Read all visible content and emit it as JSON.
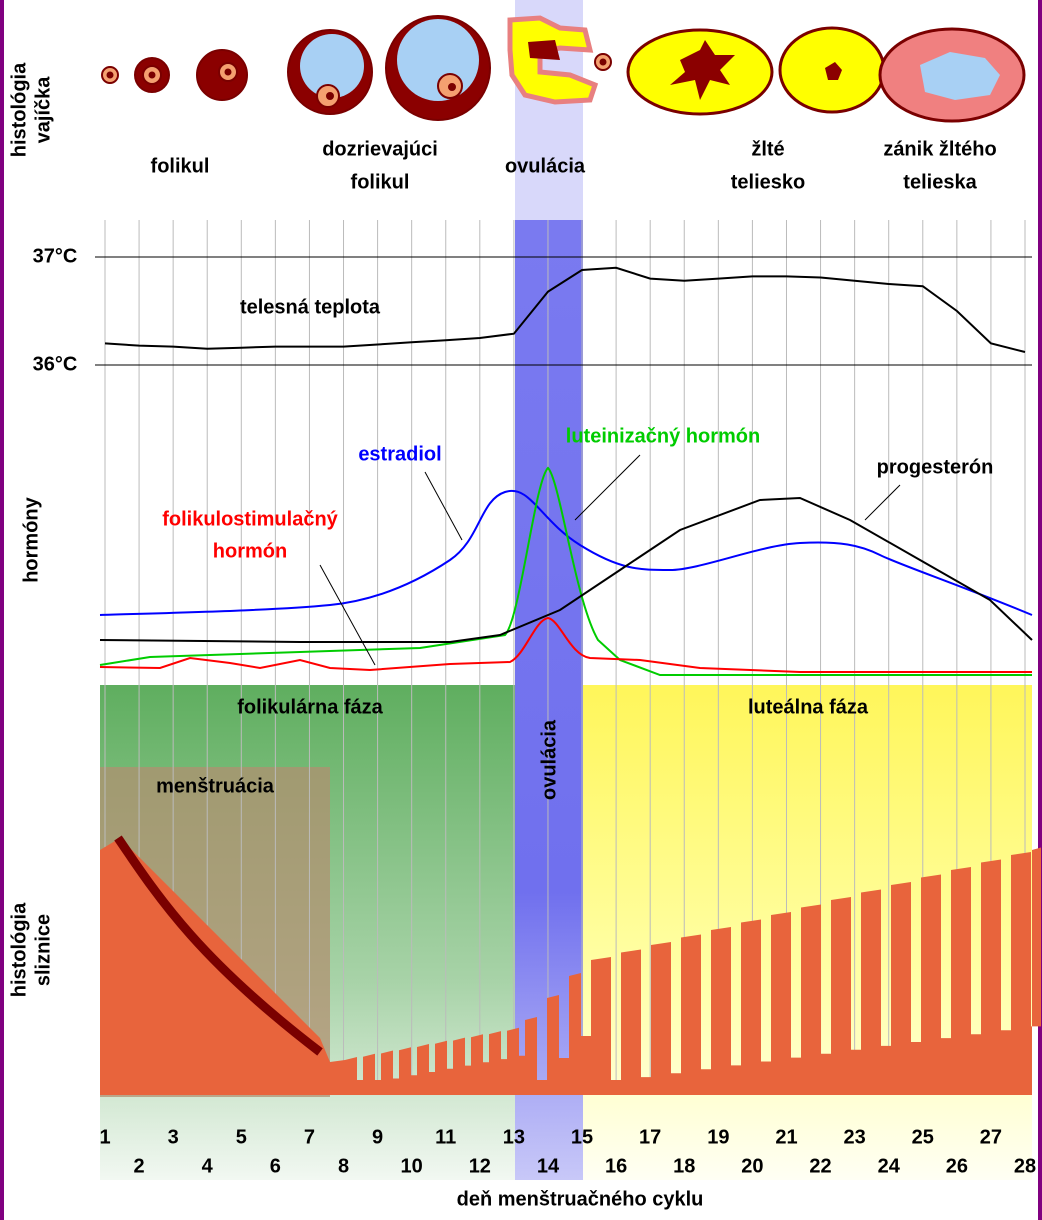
{
  "side_labels": {
    "egg": [
      "histológia",
      "vajíčka"
    ],
    "hormones": [
      "hormóny"
    ],
    "mucosa": [
      "histológia",
      "sliznice"
    ]
  },
  "egg_stages": [
    [
      "folikul"
    ],
    [
      "dozrievajúci",
      "folikul"
    ],
    [
      "ovulácia"
    ],
    [
      "žlté",
      "teliesko"
    ],
    [
      "zánik žltého",
      "telieska"
    ]
  ],
  "temperature": {
    "label": "telesná teplota",
    "x": [
      1,
      2,
      3,
      4,
      5,
      6,
      7,
      8,
      9,
      10,
      11,
      12,
      13,
      14,
      15,
      16,
      17,
      18,
      19,
      20,
      21,
      22,
      23,
      24,
      25,
      26,
      27,
      28
    ],
    "values": [
      36.2,
      36.18,
      36.17,
      36.15,
      36.16,
      36.17,
      36.17,
      36.17,
      36.19,
      36.21,
      36.23,
      36.25,
      36.29,
      36.68,
      36.88,
      36.9,
      36.8,
      36.78,
      36.8,
      36.82,
      36.82,
      36.81,
      36.78,
      36.75,
      36.73,
      36.5,
      36.2,
      36.12
    ],
    "ylim": [
      36,
      37
    ],
    "yticks": [
      {
        "value": 36,
        "label": "36°C"
      },
      {
        "value": 37,
        "label": "37°C"
      }
    ]
  },
  "hormones": [
    {
      "name": [
        "estradiol"
      ],
      "color": "#0000ff"
    },
    {
      "name": [
        "luteinizačný hormón"
      ],
      "color": "#00cc00"
    },
    {
      "name": [
        "folikulostimulačný",
        "hormón"
      ],
      "color": "#ff0000"
    },
    {
      "name": [
        "progesterón"
      ],
      "color": "#000000"
    }
  ],
  "phases": {
    "follicular": "folikulárna fáza",
    "ovulation": "ovulácia",
    "luteal": "luteálna fáza",
    "menstruation": "menštruácia"
  },
  "x_axis": {
    "title": "deň menštruačného cyklu",
    "xlim": [
      1,
      28
    ],
    "xticks": [
      1,
      2,
      3,
      4,
      5,
      6,
      7,
      8,
      9,
      10,
      11,
      12,
      13,
      14,
      15,
      16,
      17,
      18,
      19,
      20,
      21,
      22,
      23,
      24,
      25,
      26,
      27,
      28
    ]
  }
}
